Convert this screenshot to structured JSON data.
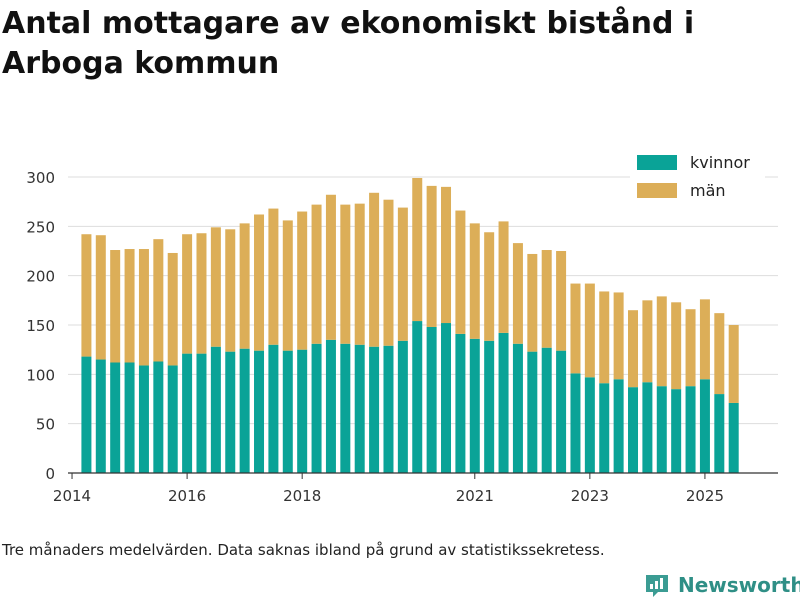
{
  "title": "Antal mottagare av ekonomiskt bistånd i Arboga kommun",
  "footnote": "Tre månaders medelvärden. Data saknas ibland på grund av statistikssekretess.",
  "brand": {
    "name": "Newsworthy"
  },
  "colors": {
    "kvinnor": "#0aa397",
    "man": "#dcae58",
    "grid": "#dddddd",
    "axis": "#333333"
  },
  "chart_data": {
    "type": "bar",
    "stacked": true,
    "title": "Antal mottagare av ekonomiskt bistånd i Arboga kommun",
    "xlabel": "",
    "ylabel": "",
    "xlim": [
      2013.93,
      2026.27
    ],
    "ylim": [
      0,
      300
    ],
    "yticks": [
      0,
      50,
      100,
      150,
      200,
      250,
      300
    ],
    "xticks": [
      2014,
      2016,
      2018,
      2021,
      2023,
      2025
    ],
    "legend_position": "top-right",
    "x": [
      2014.25,
      2014.5,
      2014.75,
      2015.0,
      2015.25,
      2015.5,
      2015.75,
      2016.0,
      2016.25,
      2016.5,
      2016.75,
      2017.0,
      2017.25,
      2017.5,
      2017.75,
      2018.0,
      2018.25,
      2018.5,
      2018.75,
      2019.0,
      2019.25,
      2019.5,
      2019.75,
      2020.0,
      2020.25,
      2020.5,
      2020.75,
      2021.0,
      2021.25,
      2021.5,
      2021.75,
      2022.0,
      2022.25,
      2022.5,
      2022.75,
      2023.0,
      2023.25,
      2023.5,
      2023.75,
      2024.0,
      2024.25,
      2024.5,
      2024.75,
      2025.0,
      2025.25,
      2025.5
    ],
    "series": [
      {
        "name": "kvinnor",
        "values": [
          118,
          115,
          112,
          112,
          109,
          113,
          109,
          121,
          121,
          128,
          123,
          126,
          124,
          130,
          124,
          125,
          131,
          135,
          131,
          130,
          128,
          129,
          134,
          154,
          148,
          152,
          141,
          136,
          134,
          142,
          131,
          123,
          127,
          124,
          101,
          97,
          91,
          95,
          87,
          92,
          88,
          85,
          88,
          95,
          80,
          71
        ]
      },
      {
        "name": "män",
        "values": [
          124,
          126,
          114,
          115,
          118,
          124,
          114,
          121,
          122,
          121,
          124,
          127,
          138,
          138,
          132,
          140,
          141,
          147,
          141,
          143,
          156,
          148,
          135,
          145,
          143,
          138,
          125,
          117,
          110,
          113,
          102,
          99,
          99,
          101,
          91,
          95,
          93,
          88,
          78,
          83,
          91,
          88,
          78,
          81,
          82,
          79
        ]
      }
    ]
  }
}
